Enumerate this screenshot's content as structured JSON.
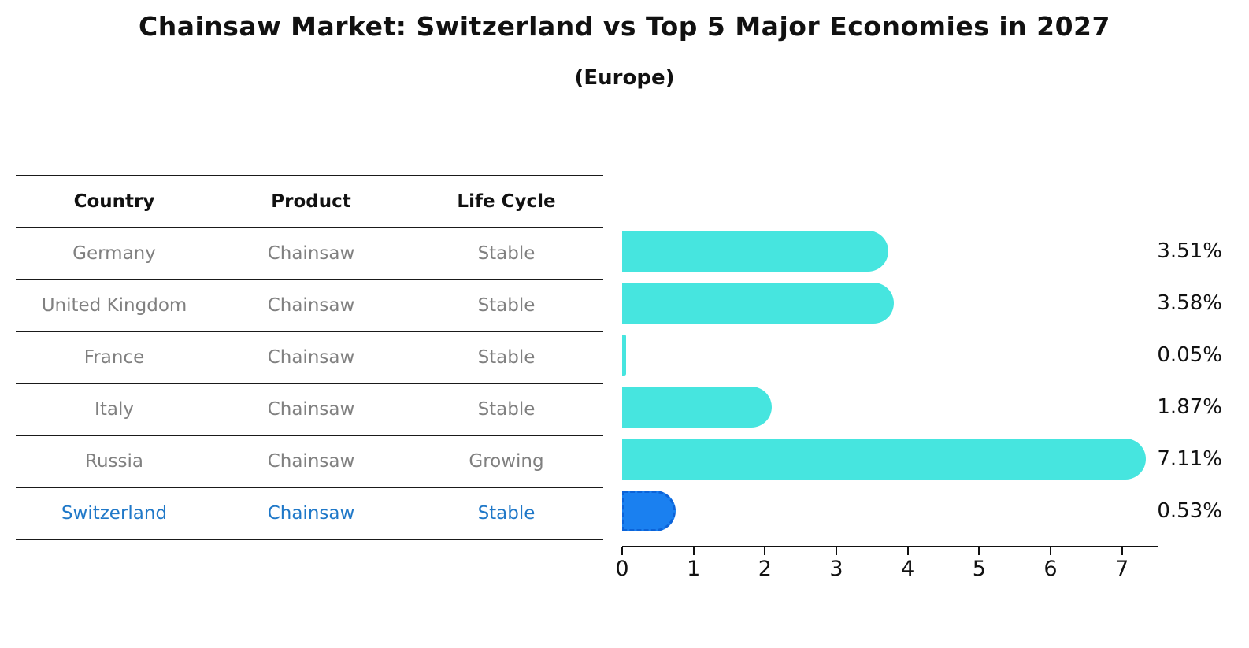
{
  "header": {
    "title": "Chainsaw Market: Switzerland vs Top 5 Major Economies in 2027",
    "subtitle": "(Europe)"
  },
  "table": {
    "columns": [
      "Country",
      "Product",
      "Life Cycle"
    ],
    "rows": [
      {
        "country": "Germany",
        "product": "Chainsaw",
        "life_cycle": "Stable",
        "highlight": false
      },
      {
        "country": "United Kingdom",
        "product": "Chainsaw",
        "life_cycle": "Stable",
        "highlight": false
      },
      {
        "country": "France",
        "product": "Chainsaw",
        "life_cycle": "Stable",
        "highlight": false
      },
      {
        "country": "Italy",
        "product": "Chainsaw",
        "life_cycle": "Stable",
        "highlight": false
      },
      {
        "country": "Russia",
        "product": "Chainsaw",
        "life_cycle": "Growing",
        "highlight": false
      },
      {
        "country": "Switzerland",
        "product": "Chainsaw",
        "life_cycle": "Stable",
        "highlight": true
      }
    ]
  },
  "chart_data": {
    "type": "bar",
    "orientation": "horizontal",
    "title": "Chainsaw Market: Switzerland vs Top 5 Major Economies in 2027",
    "subtitle": "(Europe)",
    "categories": [
      "Germany",
      "United Kingdom",
      "France",
      "Italy",
      "Russia",
      "Switzerland"
    ],
    "values": [
      3.51,
      3.58,
      0.05,
      1.87,
      7.11,
      0.53
    ],
    "value_labels": [
      "3.51%",
      "3.58%",
      "0.05%",
      "1.87%",
      "7.11%",
      "0.53%"
    ],
    "xlim": [
      0,
      7.5
    ],
    "xticks": [
      "0",
      "1",
      "2",
      "3",
      "4",
      "5",
      "6",
      "7"
    ],
    "grid": false,
    "legend": false,
    "bar_color": "#46e5df",
    "highlight_index": 5,
    "highlight_color": "#1a80f0",
    "highlight_border_color": "#0c63d8"
  },
  "colors": {
    "text": "#111111",
    "muted_text": "#808080",
    "highlight_text": "#1f78c8",
    "line": "#1a1a1a",
    "background": "#ffffff"
  }
}
